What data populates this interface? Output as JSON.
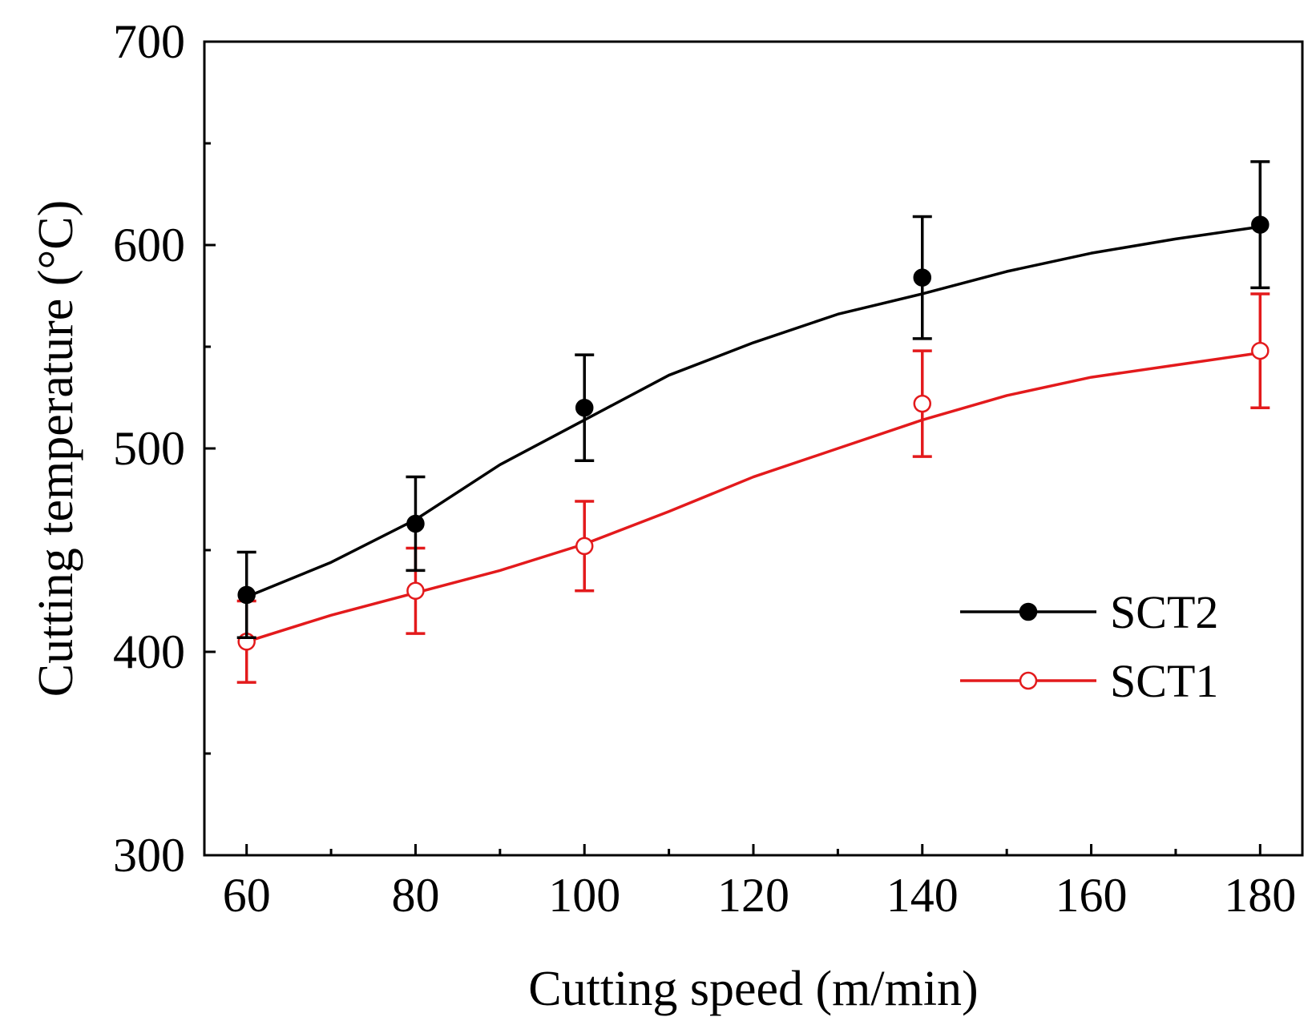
{
  "chart_data": {
    "type": "line",
    "title": "",
    "xlabel": "Cutting speed (m/min)",
    "ylabel": "Cutting temperature (°C)",
    "xlim": [
      55,
      185
    ],
    "ylim": [
      300,
      700
    ],
    "xticks": [
      60,
      80,
      100,
      120,
      140,
      160,
      180
    ],
    "xtick_labels": [
      "60",
      "80",
      "100",
      "120",
      "140",
      "160",
      "180"
    ],
    "yticks": [
      300,
      400,
      500,
      600,
      700
    ],
    "ytick_labels": [
      "300",
      "400",
      "500",
      "600",
      "700"
    ],
    "legend_position": "center-right",
    "x": [
      60,
      80,
      100,
      140,
      180
    ],
    "series": [
      {
        "name": "SCT2",
        "color": "#000000",
        "marker": "filled-circle",
        "values": [
          428,
          463,
          520,
          584,
          610
        ],
        "error": [
          21,
          23,
          26,
          30,
          31
        ],
        "fit": [
          [
            60,
            427
          ],
          [
            70,
            444
          ],
          [
            80,
            465
          ],
          [
            90,
            492
          ],
          [
            100,
            514
          ],
          [
            110,
            536
          ],
          [
            120,
            552
          ],
          [
            130,
            566
          ],
          [
            140,
            576
          ],
          [
            150,
            587
          ],
          [
            160,
            596
          ],
          [
            170,
            603
          ],
          [
            180,
            609
          ]
        ]
      },
      {
        "name": "SCT1",
        "color": "#e31a1c",
        "marker": "open-circle",
        "values": [
          405,
          430,
          452,
          522,
          548
        ],
        "error": [
          20,
          21,
          22,
          26,
          28
        ],
        "fit": [
          [
            60,
            405
          ],
          [
            70,
            418
          ],
          [
            80,
            429
          ],
          [
            90,
            440
          ],
          [
            100,
            453
          ],
          [
            110,
            469
          ],
          [
            120,
            486
          ],
          [
            130,
            500
          ],
          [
            140,
            514
          ],
          [
            150,
            526
          ],
          [
            160,
            535
          ],
          [
            170,
            541
          ],
          [
            180,
            547
          ]
        ]
      }
    ]
  }
}
